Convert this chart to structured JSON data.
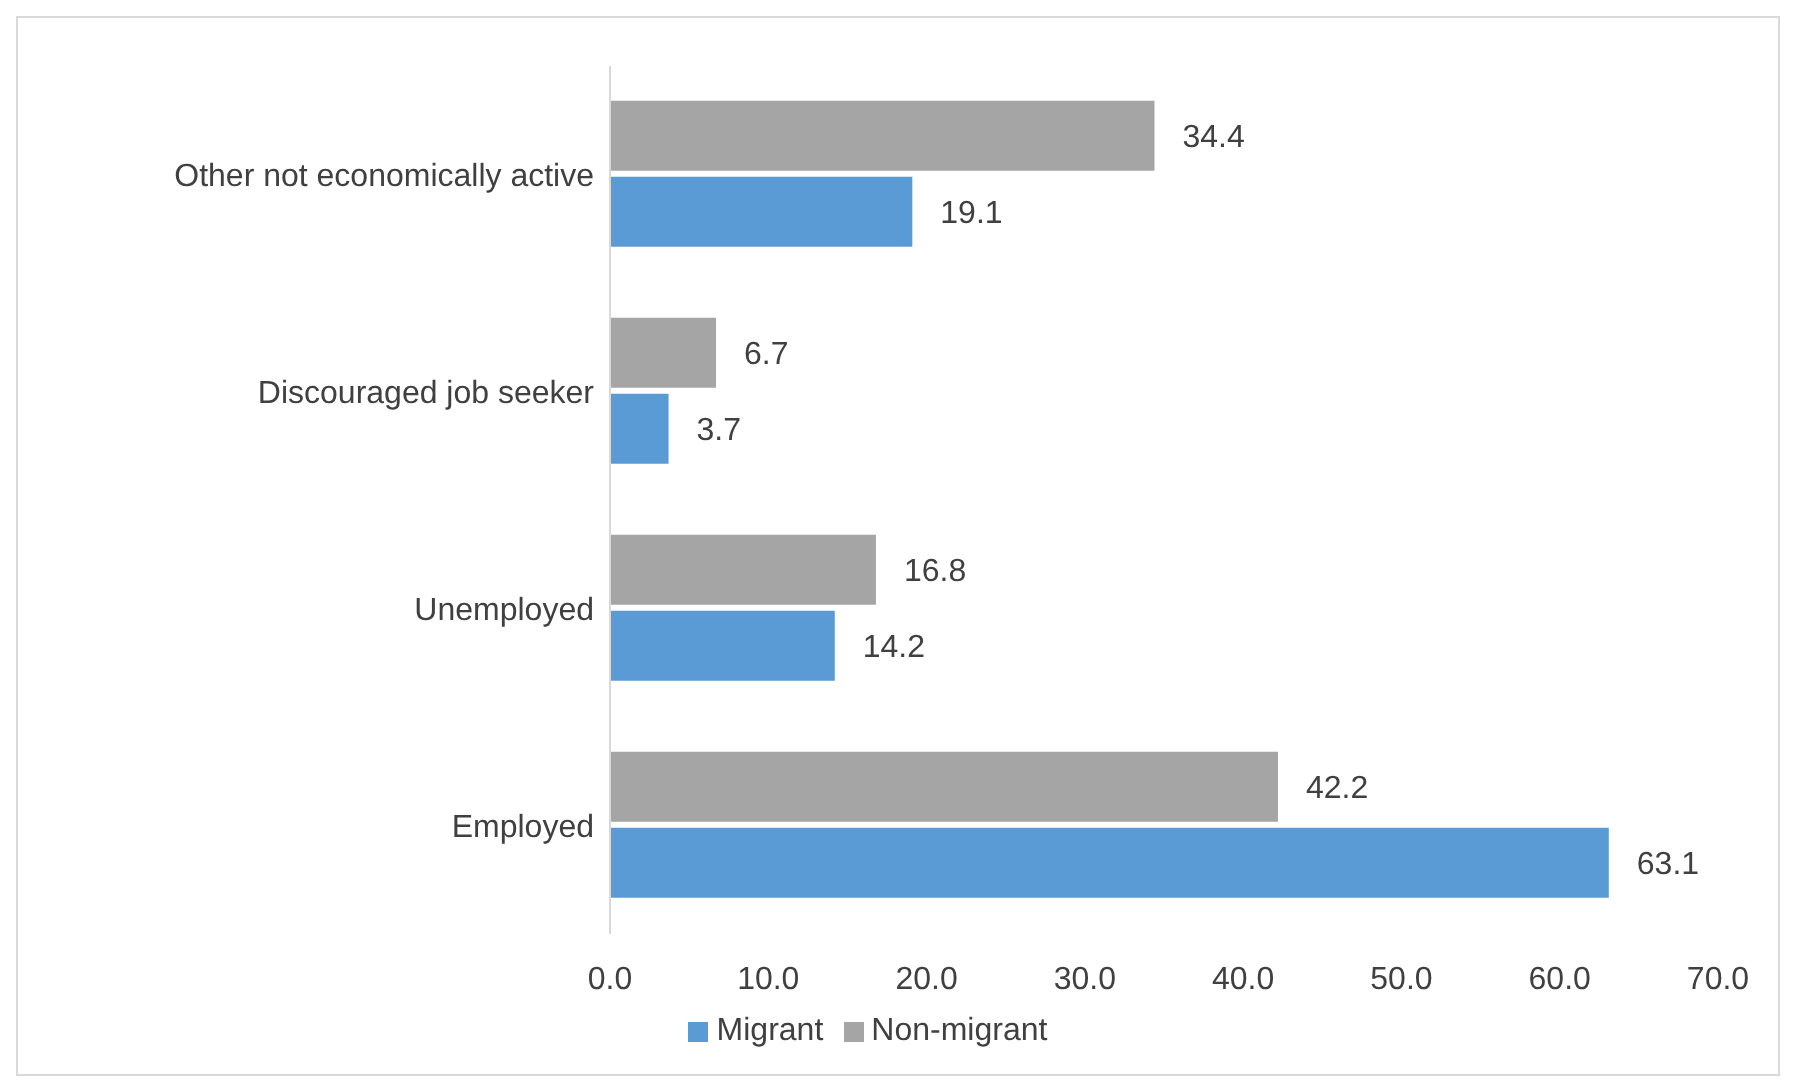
{
  "chart_data": {
    "type": "bar",
    "orientation": "horizontal",
    "categories": [
      "Other not economically active",
      "Discouraged job seeker",
      "Unemployed",
      "Employed"
    ],
    "series": [
      {
        "name": "Non-migrant",
        "color": "#a5a5a5",
        "values": [
          34.4,
          6.7,
          16.8,
          42.2
        ]
      },
      {
        "name": "Migrant",
        "color": "#5b9bd5",
        "values": [
          19.1,
          3.7,
          14.2,
          63.1
        ]
      }
    ],
    "xlim": [
      0,
      70
    ],
    "xticks": [
      {
        "value": 0,
        "label": "0.0"
      },
      {
        "value": 10,
        "label": "10.0"
      },
      {
        "value": 20,
        "label": "20.0"
      },
      {
        "value": 30,
        "label": "30.0"
      },
      {
        "value": 40,
        "label": "40.0"
      },
      {
        "value": 50,
        "label": "50.0"
      },
      {
        "value": 60,
        "label": "60.0"
      },
      {
        "value": 70,
        "label": "70.0"
      }
    ],
    "data_labels": true,
    "grid": false,
    "legend": "bottom"
  }
}
